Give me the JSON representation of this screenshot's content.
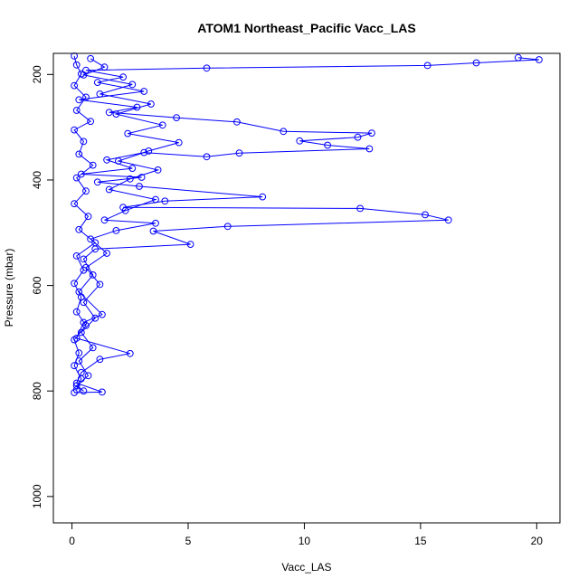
{
  "chart_data": {
    "type": "scatter",
    "title": "ATOM1 Northeast_Pacific Vacc_LAS",
    "xlabel": "Vacc_LAS",
    "ylabel": "Pressure (mbar)",
    "xlim": [
      -0.8,
      21.0
    ],
    "ylim": [
      1050,
      160
    ],
    "y_reversed": true,
    "x_ticks": [
      0,
      5,
      10,
      15,
      20
    ],
    "y_ticks": [
      200,
      400,
      600,
      800,
      1000
    ],
    "grid": false,
    "legend": "none",
    "style": "points-and-lines",
    "marker": "open-circle",
    "series_color": "#0000ff",
    "series": [
      {
        "points": [
          [
            19.2,
            168
          ],
          [
            20.1,
            172
          ],
          [
            17.4,
            178
          ],
          [
            15.3,
            183
          ],
          [
            5.8,
            188
          ],
          [
            0.6,
            192
          ],
          [
            2.2,
            205
          ],
          [
            1.1,
            215
          ],
          [
            3.1,
            232
          ],
          [
            0.3,
            248
          ],
          [
            2.8,
            262
          ],
          [
            1.6,
            272
          ],
          [
            4.5,
            282
          ],
          [
            7.1,
            290
          ],
          [
            9.1,
            308
          ],
          [
            12.9,
            311
          ],
          [
            12.3,
            319
          ],
          [
            9.8,
            326
          ],
          [
            11.0,
            334
          ],
          [
            12.8,
            341
          ],
          [
            7.2,
            349
          ],
          [
            5.8,
            356
          ],
          [
            3.1,
            348
          ],
          [
            1.5,
            362
          ],
          [
            2.6,
            378
          ],
          [
            0.4,
            389
          ],
          [
            3.0,
            395
          ],
          [
            1.1,
            404
          ],
          [
            2.9,
            412
          ],
          [
            8.2,
            432
          ],
          [
            4.0,
            440
          ],
          [
            2.2,
            452
          ],
          [
            12.4,
            454
          ],
          [
            15.2,
            466
          ],
          [
            16.2,
            476
          ],
          [
            6.7,
            488
          ],
          [
            3.5,
            497
          ],
          [
            5.1,
            522
          ],
          [
            1.0,
            531
          ],
          [
            0.5,
            550
          ],
          [
            0.9,
            580
          ],
          [
            0.3,
            612
          ],
          [
            1.3,
            655
          ],
          [
            0.5,
            670
          ],
          [
            0.2,
            700
          ],
          [
            2.5,
            729
          ],
          [
            1.2,
            740
          ],
          [
            0.4,
            765
          ],
          [
            0.2,
            785
          ],
          [
            1.3,
            802
          ],
          [
            0.1,
            803
          ]
        ]
      },
      {
        "points": [
          [
            0.8,
            170
          ],
          [
            1.4,
            186
          ],
          [
            0.5,
            201
          ],
          [
            2.6,
            219
          ],
          [
            1.2,
            237
          ],
          [
            3.4,
            256
          ],
          [
            1.9,
            275
          ],
          [
            3.9,
            296
          ],
          [
            2.4,
            312
          ],
          [
            4.6,
            329
          ],
          [
            3.3,
            345
          ],
          [
            2.0,
            364
          ],
          [
            3.7,
            381
          ],
          [
            2.5,
            398
          ],
          [
            1.6,
            418
          ],
          [
            3.6,
            437
          ],
          [
            2.3,
            458
          ],
          [
            1.4,
            476
          ],
          [
            3.6,
            482
          ],
          [
            1.9,
            496
          ],
          [
            0.8,
            512
          ],
          [
            1.5,
            539
          ],
          [
            0.6,
            566
          ],
          [
            1.2,
            598
          ],
          [
            0.5,
            632
          ],
          [
            1.0,
            662
          ],
          [
            0.4,
            689
          ],
          [
            0.9,
            718
          ],
          [
            0.3,
            743
          ],
          [
            0.7,
            771
          ],
          [
            0.2,
            790
          ],
          [
            0.5,
            800
          ]
        ]
      },
      {
        "points": [
          [
            0.1,
            165
          ],
          [
            0.2,
            182
          ],
          [
            0.4,
            199
          ],
          [
            0.1,
            221
          ],
          [
            0.6,
            243
          ],
          [
            0.2,
            268
          ],
          [
            0.8,
            289
          ],
          [
            0.1,
            305
          ],
          [
            0.5,
            327
          ],
          [
            0.3,
            351
          ],
          [
            0.9,
            372
          ],
          [
            0.2,
            396
          ],
          [
            0.6,
            421
          ],
          [
            0.1,
            445
          ],
          [
            0.7,
            469
          ],
          [
            0.3,
            494
          ],
          [
            1.0,
            519
          ],
          [
            0.2,
            544
          ],
          [
            0.5,
            571
          ],
          [
            0.1,
            596
          ],
          [
            0.4,
            622
          ],
          [
            0.2,
            650
          ],
          [
            0.6,
            676
          ],
          [
            0.1,
            703
          ],
          [
            0.3,
            728
          ],
          [
            0.1,
            752
          ],
          [
            0.4,
            777
          ],
          [
            0.2,
            798
          ]
        ]
      }
    ]
  }
}
